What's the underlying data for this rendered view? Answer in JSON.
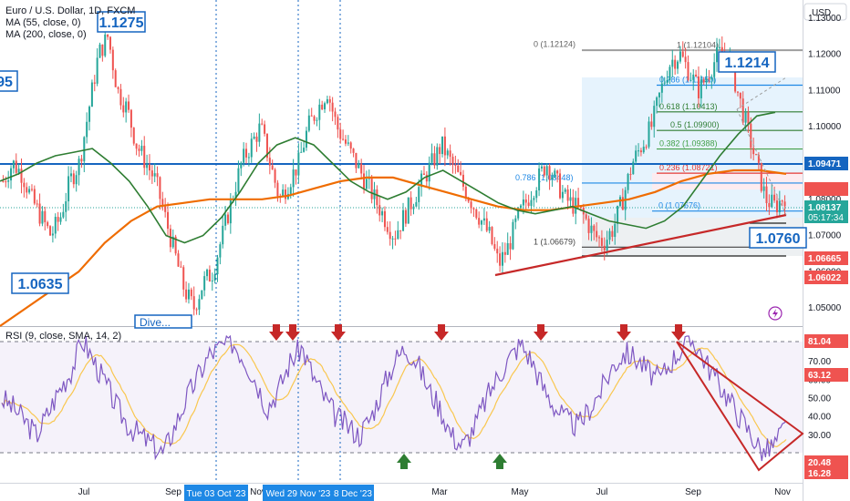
{
  "header": {
    "symbol": "Euro / U.S. Dollar, 1D, FXCM",
    "ma55": "MA (55, close, 0)",
    "ma200": "MA (200, close, 0)",
    "currency": "USD"
  },
  "annotations": {
    "top_box": "1.1275",
    "left_box": "95",
    "low_box": "1.0635",
    "high_box": "1.1214",
    "target_box": "1.0760",
    "partial_label": "Dive..."
  },
  "price_axis": {
    "ticks": [
      "1.13000",
      "1.12000",
      "1.11000",
      "1.10000",
      "1.09000",
      "1.08000",
      "1.07000",
      "1.06000",
      "1.05000"
    ],
    "current_price": "1.08137",
    "countdown": "05:17:34",
    "badge_blue": "1.09471",
    "badge_red1": "1.06665",
    "badge_red2": "1.06022"
  },
  "fib": {
    "levels": [
      {
        "label": "0 (1.12124)",
        "value": 1.12124
      },
      {
        "label": "1 (1.12104)",
        "value": 1.12104
      },
      {
        "label": "0.786 (1.11150)",
        "value": 1.1115
      },
      {
        "label": "0.618 (1.10413)",
        "value": 1.10413
      },
      {
        "label": "0.5 (1.09900)",
        "value": 1.099
      },
      {
        "label": "0.382 (1.09388)",
        "value": 1.09388
      },
      {
        "label": "0.236 (1.08721)",
        "value": 1.08721
      },
      {
        "label": "0.786 (1.08448)",
        "value": 1.08448
      },
      {
        "label": "0 (1.07676)",
        "value": 1.07676
      },
      {
        "label": "1 (1.06679)",
        "value": 1.06679
      }
    ]
  },
  "rsi": {
    "title": "RSI (9, close, SMA, 14, 2)",
    "ticks": [
      "70.00",
      "60.00",
      "50.00",
      "40.00",
      "30.00"
    ],
    "badge_upper": "81.04",
    "badge_mid": "63.12",
    "badge_low1": "20.48",
    "badge_low2": "16.28"
  },
  "time_axis": {
    "months": [
      "Jul",
      "Sep",
      "Nov",
      "Mar",
      "May",
      "Jul",
      "Sep",
      "Nov"
    ],
    "date_tags": [
      "Tue 03 Oct '23",
      "Wed 29 Nov '23",
      "8 Dec '23"
    ]
  },
  "colors": {
    "candle_up": "#26a69a",
    "candle_down": "#ef5350",
    "ma55": "#2e7d32",
    "ma200": "#ef6c00",
    "blue_line": "#1565c0",
    "trend_red": "#c62828",
    "rsi_line": "#7e57c2",
    "rsi_signal": "#f9c74f"
  },
  "chart_data": {
    "type": "candlestick",
    "instrument": "EUR/USD",
    "timeframe": "1D",
    "ylim": [
      1.045,
      1.135
    ],
    "key_levels": [
      1.09471,
      1.06665,
      1.06022,
      1.076,
      1.1214,
      1.0635,
      1.1275
    ],
    "close_path": [
      1.085,
      1.09,
      1.087,
      1.08,
      1.075,
      1.07,
      1.075,
      1.085,
      1.09,
      1.105,
      1.12,
      1.125,
      1.11,
      1.105,
      1.095,
      1.09,
      1.085,
      1.075,
      1.065,
      1.055,
      1.05,
      1.057,
      1.06,
      1.07,
      1.08,
      1.09,
      1.095,
      1.1,
      1.09,
      1.08,
      1.085,
      1.09,
      1.1,
      1.105,
      1.11,
      1.1,
      1.095,
      1.09,
      1.085,
      1.08,
      1.075,
      1.07,
      1.075,
      1.08,
      1.085,
      1.09,
      1.095,
      1.09,
      1.085,
      1.08,
      1.075,
      1.07,
      1.062,
      1.067,
      1.075,
      1.08,
      1.085,
      1.09,
      1.085,
      1.08,
      1.078,
      1.075,
      1.07,
      1.068,
      1.072,
      1.08,
      1.09,
      1.095,
      1.1,
      1.11,
      1.118,
      1.12,
      1.115,
      1.11,
      1.115,
      1.12,
      1.121,
      1.11,
      1.1,
      1.09,
      1.08,
      1.078,
      1.081
    ],
    "ma55_path": [
      1.085,
      1.087,
      1.09,
      1.092,
      1.093,
      1.094,
      1.09,
      1.085,
      1.078,
      1.07,
      1.068,
      1.07,
      1.075,
      1.082,
      1.09,
      1.095,
      1.097,
      1.095,
      1.09,
      1.085,
      1.082,
      1.08,
      1.082,
      1.086,
      1.088,
      1.085,
      1.082,
      1.079,
      1.077,
      1.076,
      1.077,
      1.078,
      1.076,
      1.074,
      1.073,
      1.072,
      1.074,
      1.078,
      1.085,
      1.092,
      1.098,
      1.103,
      1.104
    ],
    "ma200_path": [
      1.045,
      1.05,
      1.055,
      1.06,
      1.068,
      1.074,
      1.078,
      1.079,
      1.08,
      1.08,
      1.08,
      1.081,
      1.083,
      1.085,
      1.086,
      1.086,
      1.084,
      1.082,
      1.08,
      1.078,
      1.077,
      1.077,
      1.078,
      1.079,
      1.08,
      1.082,
      1.085,
      1.087,
      1.088,
      1.088,
      1.087
    ],
    "rsi_path": [
      50,
      45,
      38,
      30,
      42,
      55,
      65,
      82,
      70,
      58,
      45,
      35,
      30,
      25,
      20,
      35,
      50,
      62,
      74,
      78,
      81,
      72,
      60,
      45,
      55,
      70,
      78,
      62,
      50,
      40,
      35,
      30,
      40,
      55,
      70,
      78,
      70,
      55,
      45,
      30,
      24,
      35,
      50,
      62,
      72,
      80,
      70,
      55,
      45,
      38,
      35,
      45,
      55,
      68,
      75,
      72,
      65,
      60,
      70,
      78,
      82,
      70,
      60,
      50,
      40,
      30,
      20,
      25,
      35
    ],
    "rsi_levels": {
      "upper": 81.04,
      "lower": 20.48,
      "current": 35
    }
  }
}
